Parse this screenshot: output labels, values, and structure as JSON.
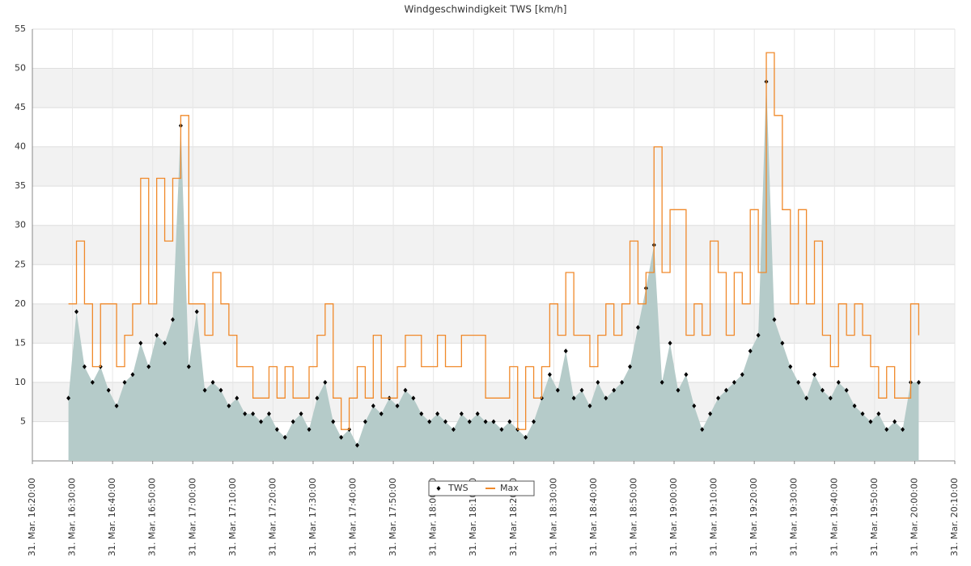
{
  "chart_data": {
    "type": "line",
    "title": "Windgeschwindigkeit TWS [km/h]",
    "x": [
      "16:29",
      "16:31",
      "16:33",
      "16:35",
      "16:37",
      "16:39",
      "16:41",
      "16:43",
      "16:45",
      "16:47",
      "16:49",
      "16:51",
      "16:53",
      "16:55",
      "16:57",
      "16:59",
      "17:01",
      "17:03",
      "17:05",
      "17:07",
      "17:09",
      "17:11",
      "17:13",
      "17:15",
      "17:17",
      "17:19",
      "17:21",
      "17:23",
      "17:25",
      "17:27",
      "17:29",
      "17:31",
      "17:33",
      "17:35",
      "17:37",
      "17:39",
      "17:41",
      "17:43",
      "17:45",
      "17:47",
      "17:49",
      "17:51",
      "17:53",
      "17:55",
      "17:57",
      "17:59",
      "18:01",
      "18:03",
      "18:05",
      "18:07",
      "18:09",
      "18:11",
      "18:13",
      "18:15",
      "18:17",
      "18:19",
      "18:21",
      "18:23",
      "18:25",
      "18:27",
      "18:29",
      "18:31",
      "18:33",
      "18:35",
      "18:37",
      "18:39",
      "18:41",
      "18:43",
      "18:45",
      "18:47",
      "18:49",
      "18:51",
      "18:53",
      "18:55",
      "18:57",
      "18:59",
      "19:01",
      "19:03",
      "19:05",
      "19:07",
      "19:09",
      "19:11",
      "19:13",
      "19:15",
      "19:17",
      "19:19",
      "19:21",
      "19:23",
      "19:25",
      "19:27",
      "19:29",
      "19:31",
      "19:33",
      "19:35",
      "19:37",
      "19:39",
      "19:41",
      "19:43",
      "19:45",
      "19:47",
      "19:49",
      "19:51",
      "19:53",
      "19:55",
      "19:57",
      "19:59",
      "20:01"
    ],
    "series": [
      {
        "name": "TWS",
        "color": "#000000",
        "area_color": "#b5cbc9",
        "values": [
          8,
          19,
          12,
          10,
          12,
          9,
          7,
          10,
          11,
          15,
          12,
          16,
          15,
          18,
          42.7,
          12,
          19,
          9,
          10,
          9,
          7,
          8,
          6,
          6,
          5,
          6,
          4,
          3,
          5,
          6,
          4,
          8,
          10,
          5,
          3,
          4,
          2,
          5,
          7,
          6,
          8,
          7,
          9,
          8,
          6,
          5,
          6,
          5,
          4,
          6,
          5,
          6,
          5,
          5,
          4,
          5,
          4,
          3,
          5,
          8,
          11,
          9,
          14,
          8,
          9,
          7,
          10,
          8,
          9,
          10,
          12,
          17,
          22,
          27.5,
          10,
          15,
          9,
          11,
          7,
          4,
          6,
          8,
          9,
          10,
          11,
          14,
          16,
          48.3,
          18,
          15,
          12,
          10,
          8,
          11,
          9,
          8,
          10,
          9,
          7,
          6,
          5,
          6,
          4,
          5,
          4,
          10,
          10
        ]
      },
      {
        "name": "Max",
        "color": "#f0892a",
        "step": true,
        "values": [
          20,
          28,
          20,
          12,
          20,
          20,
          12,
          16,
          20,
          36,
          20,
          36,
          28,
          36,
          44,
          20,
          20,
          16,
          24,
          20,
          16,
          12,
          12,
          8,
          8,
          12,
          8,
          12,
          8,
          8,
          12,
          16,
          20,
          8,
          4,
          8,
          12,
          8,
          16,
          8,
          8,
          12,
          16,
          16,
          12,
          12,
          16,
          12,
          12,
          16,
          16,
          16,
          8,
          8,
          8,
          12,
          4,
          12,
          8,
          12,
          20,
          16,
          24,
          16,
          16,
          12,
          16,
          20,
          16,
          20,
          28,
          20,
          24,
          40,
          24,
          32,
          32,
          16,
          20,
          16,
          28,
          24,
          16,
          24,
          20,
          32,
          24,
          52,
          44,
          32,
          20,
          32,
          20,
          28,
          16,
          12,
          20,
          16,
          20,
          16,
          12,
          8,
          12,
          8,
          8,
          20,
          16
        ]
      }
    ],
    "xlim": [
      "16:20",
      "20:10"
    ],
    "xticks": [
      {
        "value": "16:20",
        "label": "31. Mar. 16:20:00"
      },
      {
        "value": "16:30",
        "label": "31. Mar. 16:30:00"
      },
      {
        "value": "16:40",
        "label": "31. Mar. 16:40:00"
      },
      {
        "value": "16:50",
        "label": "31. Mar. 16:50:00"
      },
      {
        "value": "17:00",
        "label": "31. Mar. 17:00:00"
      },
      {
        "value": "17:10",
        "label": "31. Mar. 17:10:00"
      },
      {
        "value": "17:20",
        "label": "31. Mar. 17:20:00"
      },
      {
        "value": "17:30",
        "label": "31. Mar. 17:30:00"
      },
      {
        "value": "17:40",
        "label": "31. Mar. 17:40:00"
      },
      {
        "value": "17:50",
        "label": "31. Mar. 17:50:00"
      },
      {
        "value": "18:00",
        "label": "31. Mar. 18:00:00"
      },
      {
        "value": "18:10",
        "label": "31. Mar. 18:10:00"
      },
      {
        "value": "18:20",
        "label": "31. Mar. 18:20:00"
      },
      {
        "value": "18:30",
        "label": "31. Mar. 18:30:00"
      },
      {
        "value": "18:40",
        "label": "31. Mar. 18:40:00"
      },
      {
        "value": "18:50",
        "label": "31. Mar. 18:50:00"
      },
      {
        "value": "19:00",
        "label": "31. Mar. 19:00:00"
      },
      {
        "value": "19:10",
        "label": "31. Mar. 19:10:00"
      },
      {
        "value": "19:20",
        "label": "31. Mar. 19:20:00"
      },
      {
        "value": "19:30",
        "label": "31. Mar. 19:30:00"
      },
      {
        "value": "19:40",
        "label": "31. Mar. 19:40:00"
      },
      {
        "value": "19:50",
        "label": "31. Mar. 19:50:00"
      },
      {
        "value": "20:00",
        "label": "31. Mar. 20:00:00"
      },
      {
        "value": "20:10",
        "label": "31. Mar. 20:10:00"
      }
    ],
    "ylim": [
      0,
      55
    ],
    "yticks": [
      5,
      10,
      15,
      20,
      25,
      30,
      35,
      40,
      45,
      50,
      55
    ],
    "grid": true,
    "legend": "bottom"
  }
}
